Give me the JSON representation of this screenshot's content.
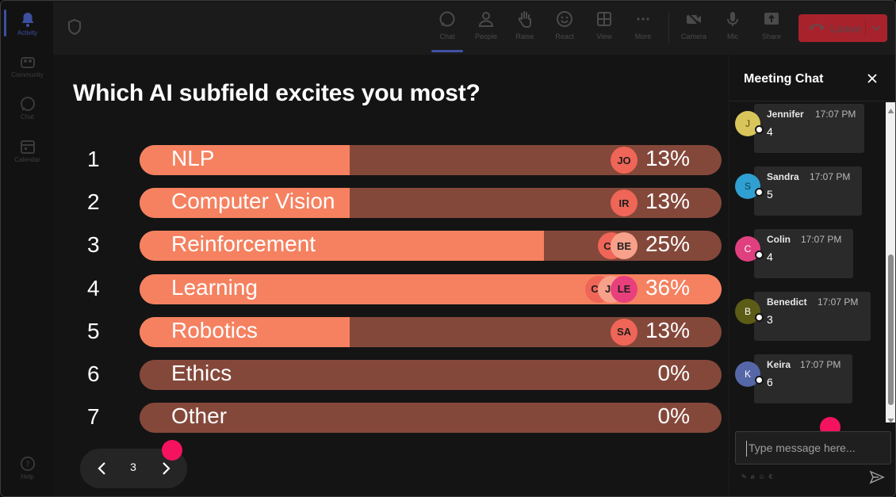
{
  "rail": {
    "items": [
      {
        "label": "Activity",
        "icon": "bell-icon",
        "active": true
      },
      {
        "label": "Community",
        "icon": "community-icon",
        "active": false
      },
      {
        "label": "Chat",
        "icon": "chat-icon",
        "active": false
      },
      {
        "label": "Calendar",
        "icon": "calendar-icon",
        "active": false
      }
    ],
    "help_label": "Help"
  },
  "toolbar": {
    "buttons": [
      {
        "label": "Chat",
        "icon": "chat-icon",
        "active": true
      },
      {
        "label": "People",
        "icon": "people-icon"
      },
      {
        "label": "Raise",
        "icon": "raise-hand-icon"
      },
      {
        "label": "React",
        "icon": "react-icon"
      },
      {
        "label": "View",
        "icon": "view-icon"
      },
      {
        "label": "More",
        "icon": "more-icon"
      },
      {
        "label": "Camera",
        "icon": "camera-icon"
      },
      {
        "label": "Mic",
        "icon": "mic-icon"
      },
      {
        "label": "Share",
        "icon": "share-icon"
      }
    ],
    "leave_label": "Leave",
    "leave_color": "#a8222c"
  },
  "poll": {
    "question": "Which AI subfield excites you most?",
    "options": [
      {
        "num": "1",
        "label": "NLP",
        "pct_text": "13%",
        "share": 0.13,
        "voters": [
          {
            "initials": "JO",
            "color": "#ef6557"
          }
        ]
      },
      {
        "num": "2",
        "label": "Computer Vision",
        "pct_text": "13%",
        "share": 0.13,
        "voters": [
          {
            "initials": "IR",
            "color": "#ef6557"
          }
        ]
      },
      {
        "num": "3",
        "label": "Reinforcement",
        "pct_text": "25%",
        "share": 0.25,
        "voters": [
          {
            "initials": "CO",
            "color": "#ef6557"
          },
          {
            "initials": "BE",
            "color": "#f7a08a"
          }
        ]
      },
      {
        "num": "4",
        "label": "Learning",
        "pct_text": "36%",
        "share": 0.36,
        "voters": [
          {
            "initials": "CO",
            "color": "#ef6557"
          },
          {
            "initials": "JE",
            "color": "#f7a08a"
          },
          {
            "initials": "LE",
            "color": "#e8407c"
          }
        ]
      },
      {
        "num": "5",
        "label": "Robotics",
        "pct_text": "13%",
        "share": 0.13,
        "voters": [
          {
            "initials": "SA",
            "color": "#ef6557"
          }
        ]
      },
      {
        "num": "6",
        "label": "Ethics",
        "pct_text": "0%",
        "share": 0.0,
        "voters": []
      },
      {
        "num": "7",
        "label": "Other",
        "pct_text": "0%",
        "share": 0.0,
        "voters": []
      }
    ],
    "fill_color": "#f58160",
    "track_color": "#84483a",
    "leading_fill": 1.0
  },
  "pager": {
    "current_page": "3"
  },
  "chat": {
    "title": "Meeting Chat",
    "messages": [
      {
        "initial": "J",
        "name": "Jennifer",
        "time": "17:07 PM",
        "text": "4",
        "avatar_color": "#d9c65b",
        "initial_color": "#5a4a10"
      },
      {
        "initial": "S",
        "name": "Sandra",
        "time": "17:07 PM",
        "text": "5",
        "avatar_color": "#2fa0d1",
        "initial_color": "#0e3b52"
      },
      {
        "initial": "C",
        "name": "Colin",
        "time": "17:07 PM",
        "text": "4",
        "avatar_color": "#e0407f",
        "initial_color": "#ffffff"
      },
      {
        "initial": "B",
        "name": "Benedict",
        "time": "17:07 PM",
        "text": "3",
        "avatar_color": "#5c5c16",
        "initial_color": "#ffffff"
      },
      {
        "initial": "K",
        "name": "Keira",
        "time": "17:07 PM",
        "text": "6",
        "avatar_color": "#5667a8",
        "initial_color": "#ffffff"
      }
    ],
    "input_placeholder": "Type message here..."
  }
}
